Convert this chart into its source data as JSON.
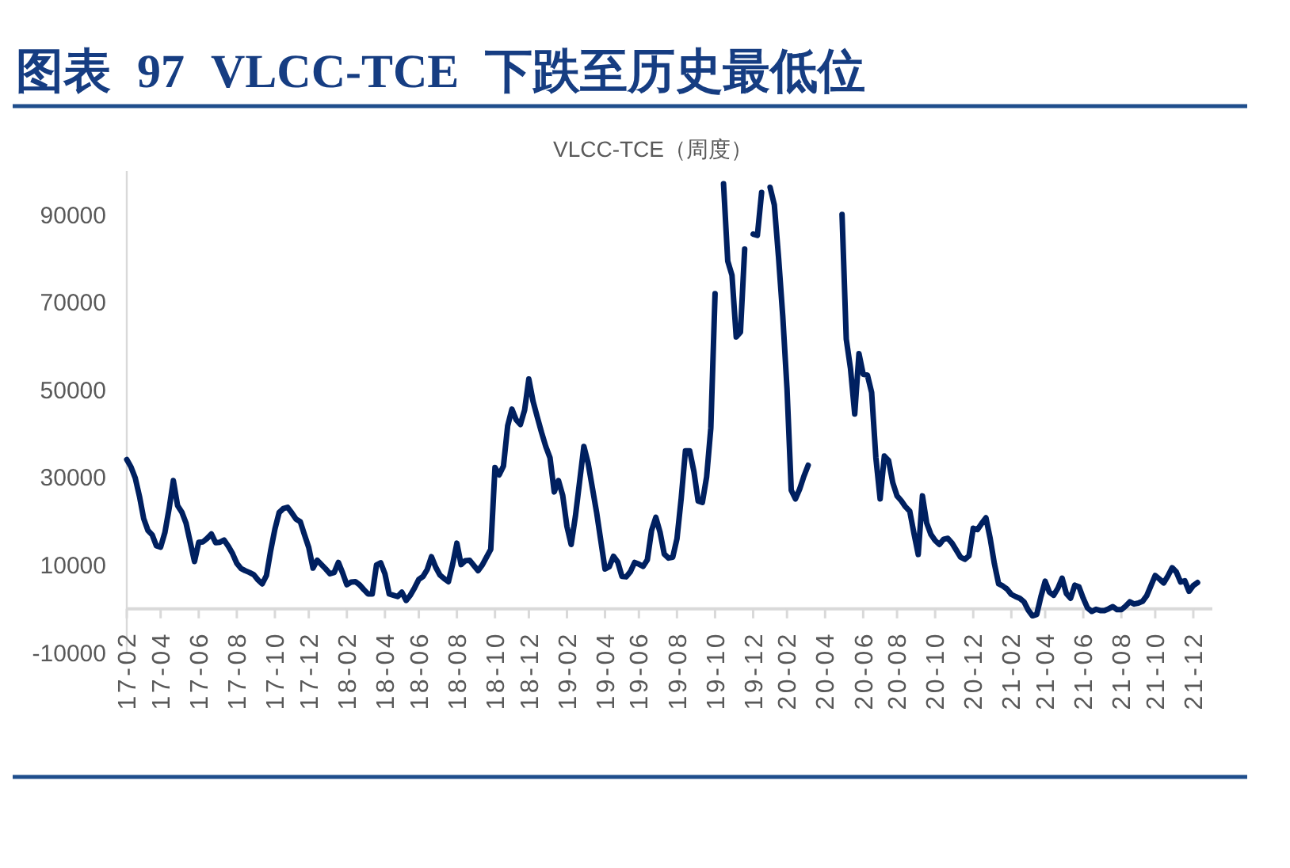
{
  "chart_data": {
    "type": "line",
    "title": "图表 97 VLCC-TCE 下跌至历史最低位",
    "subtitle": "VLCC-TCE（周度）",
    "color": "#002060",
    "ylim": [
      -10000,
      100000
    ],
    "yticks": [
      -10000,
      10000,
      30000,
      50000,
      70000,
      90000
    ],
    "categories": [
      "17-02",
      null,
      null,
      null,
      null,
      null,
      null,
      null,
      "17-04",
      null,
      null,
      null,
      null,
      null,
      null,
      null,
      null,
      "17-06",
      null,
      null,
      null,
      null,
      null,
      null,
      null,
      null,
      "17-08",
      null,
      null,
      null,
      null,
      null,
      null,
      null,
      null,
      "17-10",
      null,
      null,
      null,
      null,
      null,
      null,
      null,
      "17-12",
      null,
      null,
      null,
      null,
      null,
      null,
      null,
      null,
      "18-02",
      null,
      null,
      null,
      null,
      null,
      null,
      null,
      null,
      "18-04",
      null,
      null,
      null,
      null,
      null,
      null,
      null,
      "18-06",
      null,
      null,
      null,
      null,
      null,
      null,
      null,
      null,
      "18-08",
      null,
      null,
      null,
      null,
      null,
      null,
      null,
      null,
      "18-10",
      null,
      null,
      null,
      null,
      null,
      null,
      null,
      "18-12",
      null,
      null,
      null,
      null,
      null,
      null,
      null,
      null,
      "19-02",
      null,
      null,
      null,
      null,
      null,
      null,
      null,
      null,
      "19-04",
      null,
      null,
      null,
      null,
      null,
      null,
      null,
      "19-06",
      null,
      null,
      null,
      null,
      null,
      null,
      null,
      null,
      "19-08",
      null,
      null,
      null,
      null,
      null,
      null,
      null,
      null,
      "19-10",
      null,
      null,
      null,
      null,
      null,
      null,
      null,
      null,
      "19-12",
      null,
      null,
      null,
      null,
      null,
      null,
      null,
      "20-02",
      null,
      null,
      null,
      null,
      null,
      null,
      null,
      null,
      "20-04",
      null,
      null,
      null,
      null,
      null,
      null,
      null,
      null,
      "20-06",
      null,
      null,
      null,
      null,
      null,
      null,
      null,
      "20-08",
      null,
      null,
      null,
      null,
      null,
      null,
      null,
      null,
      "20-10",
      null,
      null,
      null,
      null,
      null,
      null,
      null,
      null,
      "20-12",
      null,
      null,
      null,
      null,
      null,
      null,
      null,
      null,
      "21-02",
      null,
      null,
      null,
      null,
      null,
      null,
      null,
      "21-04",
      null,
      null,
      null,
      null,
      null,
      null,
      null,
      null,
      "21-06",
      null,
      null,
      null,
      null,
      null,
      null,
      null,
      null,
      "21-08",
      null,
      null,
      null,
      null,
      null,
      null,
      null,
      "21-10",
      null,
      null,
      null,
      null,
      null,
      null,
      null,
      null,
      "21-12",
      null
    ],
    "values": [
      34100,
      32400,
      29900,
      25700,
      20600,
      17900,
      16900,
      14400,
      14100,
      17400,
      22900,
      29300,
      23600,
      22100,
      19600,
      15200,
      10800,
      15200,
      15300,
      16100,
      17100,
      15100,
      15200,
      15700,
      14300,
      12600,
      10400,
      9200,
      8700,
      8300,
      7800,
      6600,
      5700,
      7600,
      13300,
      18200,
      22000,
      22900,
      23200,
      21900,
      20500,
      19900,
      16900,
      14000,
      9300,
      11100,
      10100,
      9100,
      8000,
      8300,
      10600,
      8200,
      5500,
      6100,
      6200,
      5500,
      4400,
      3400,
      3400,
      10000,
      10500,
      8000,
      3400,
      3100,
      2800,
      3800,
      1900,
      3100,
      4800,
      6700,
      7400,
      9000,
      11900,
      9500,
      7700,
      6900,
      6200,
      10200,
      15000,
      10100,
      11000,
      11100,
      9900,
      8700,
      10000,
      11800,
      13600,
      32300,
      30600,
      32600,
      41800,
      45600,
      43200,
      42100,
      45400,
      52500,
      47400,
      43800,
      40300,
      37100,
      34500,
      26700,
      29300,
      25900,
      18800,
      14700,
      21100,
      29100,
      37100,
      33300,
      27700,
      22100,
      15600,
      9100,
      9600,
      12000,
      10700,
      7400,
      7300,
      8500,
      10600,
      10200,
      9700,
      11200,
      17900,
      20900,
      17500,
      12500,
      11600,
      11800,
      16000,
      25200,
      36100,
      36100,
      31400,
      24600,
      24300,
      30100,
      41300,
      72000,
      null,
      97100,
      79400,
      76200,
      62100,
      63200,
      82200,
      null,
      85600,
      85300,
      95100,
      null,
      96300,
      92300,
      80300,
      66800,
      50300,
      27100,
      25100,
      27400,
      30300,
      32800,
      null,
      null,
      null,
      null,
      null,
      null,
      null,
      90100,
      61600,
      54900,
      44500,
      58300,
      53600,
      53400,
      49400,
      34500,
      25100,
      34900,
      33900,
      28800,
      25800,
      24700,
      23300,
      22300,
      17200,
      12400,
      25800,
      19600,
      17000,
      15600,
      14700,
      15900,
      16100,
      15000,
      13400,
      11800,
      11300,
      12100,
      18400,
      18100,
      19500,
      20800,
      16100,
      10300,
      5700,
      5200,
      4500,
      3300,
      2800,
      2400,
      1600,
      -300,
      -1600,
      -1300,
      2800,
      6300,
      3800,
      3100,
      4700,
      7000,
      3500,
      2400,
      5400,
      5000,
      2400,
      200,
      -600,
      -100,
      -400,
      -400,
      0,
      500,
      -200,
      -200,
      600,
      1600,
      1100,
      1300,
      1700,
      3000,
      5300,
      7600,
      6800,
      5900,
      7500,
      9400,
      8400,
      6100,
      6400,
      4000,
      5300,
      6000
    ]
  }
}
